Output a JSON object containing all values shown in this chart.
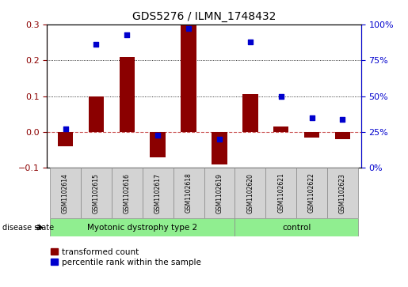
{
  "title": "GDS5276 / ILMN_1748432",
  "samples": [
    "GSM1102614",
    "GSM1102615",
    "GSM1102616",
    "GSM1102617",
    "GSM1102618",
    "GSM1102619",
    "GSM1102620",
    "GSM1102621",
    "GSM1102622",
    "GSM1102623"
  ],
  "red_bars": [
    -0.04,
    0.1,
    0.21,
    -0.07,
    0.3,
    -0.09,
    0.105,
    0.015,
    -0.015,
    -0.02
  ],
  "blue_dots": [
    27,
    86,
    93,
    23,
    97,
    20,
    88,
    50,
    35,
    34
  ],
  "groups": [
    {
      "label": "Myotonic dystrophy type 2",
      "start": 0,
      "end": 6,
      "color": "#90EE90"
    },
    {
      "label": "control",
      "start": 6,
      "end": 10,
      "color": "#90EE90"
    }
  ],
  "ylim_left": [
    -0.1,
    0.3
  ],
  "ylim_right": [
    0,
    100
  ],
  "yticks_left": [
    -0.1,
    0.0,
    0.1,
    0.2,
    0.3
  ],
  "yticks_right": [
    0,
    25,
    50,
    75,
    100
  ],
  "bar_color": "#8B0000",
  "dot_color": "#0000CD",
  "zero_line_color": "#CD5C5C",
  "grid_color": "black",
  "legend_red_label": "transformed count",
  "legend_blue_label": "percentile rank within the sample",
  "disease_state_label": "disease state",
  "background_color": "white",
  "plot_bg_color": "white",
  "bar_width": 0.5,
  "label_box_color": "#D3D3D3"
}
